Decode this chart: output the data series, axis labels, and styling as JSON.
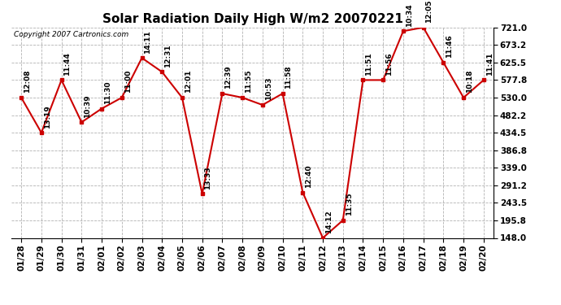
{
  "title": "Solar Radiation Daily High W/m2 20070221",
  "copyright": "Copyright 2007 Cartronics.com",
  "dates": [
    "01/28",
    "01/29",
    "01/30",
    "01/31",
    "02/01",
    "02/02",
    "02/03",
    "02/04",
    "02/05",
    "02/06",
    "02/07",
    "02/08",
    "02/09",
    "02/10",
    "02/11",
    "02/12",
    "02/13",
    "02/14",
    "02/15",
    "02/16",
    "02/17",
    "02/18",
    "02/19",
    "02/20"
  ],
  "values": [
    530.0,
    434.5,
    577.8,
    463.0,
    500.0,
    530.0,
    638.0,
    600.0,
    530.0,
    268.0,
    541.0,
    530.0,
    510.0,
    541.0,
    272.0,
    148.0,
    196.0,
    577.8,
    577.8,
    711.0,
    721.0,
    625.5,
    530.0,
    577.8
  ],
  "labels": [
    "12:08",
    "13:19",
    "11:44",
    "10:39",
    "11:30",
    "11:00",
    "14:11",
    "12:31",
    "12:01",
    "13:33",
    "12:39",
    "11:55",
    "10:53",
    "11:58",
    "12:40",
    "14:12",
    "11:35",
    "11:51",
    "11:56",
    "10:34",
    "12:05",
    "11:46",
    "10:18",
    "11:41"
  ],
  "ylim": [
    148.0,
    721.0
  ],
  "yticks": [
    148.0,
    195.8,
    243.5,
    291.2,
    339.0,
    386.8,
    434.5,
    482.2,
    530.0,
    577.8,
    625.5,
    673.2,
    721.0
  ],
  "line_color": "#cc0000",
  "marker_color": "#cc0000",
  "bg_color": "#ffffff",
  "grid_color": "#aaaaaa",
  "title_fontsize": 11,
  "label_fontsize": 6.5,
  "tick_fontsize": 7.5
}
